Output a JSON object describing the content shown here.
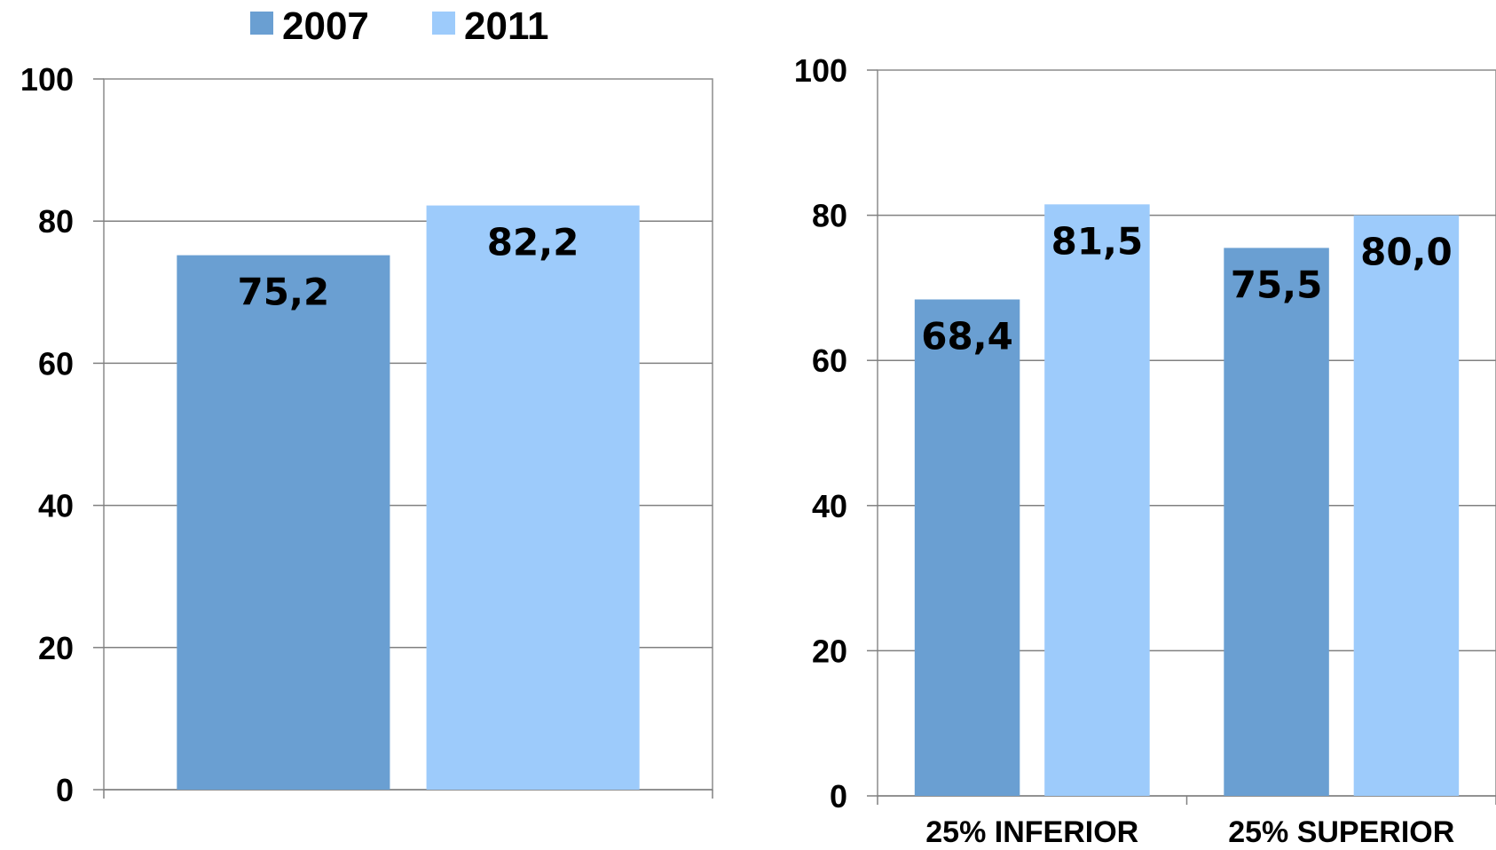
{
  "legend": {
    "items": [
      {
        "label": "2007",
        "color": "#6a9fd2"
      },
      {
        "label": "2011",
        "color": "#9dcbfb"
      }
    ]
  },
  "chart_data": [
    {
      "type": "bar",
      "title": "",
      "xlabel": "",
      "ylabel": "",
      "categories": [
        ""
      ],
      "series": [
        {
          "name": "2007",
          "values": [
            75.2
          ],
          "labels": [
            "75,2"
          ]
        },
        {
          "name": "2011",
          "values": [
            82.2
          ],
          "labels": [
            "82,2"
          ]
        }
      ],
      "ylim": [
        0,
        100
      ],
      "yticks": [
        0,
        20,
        40,
        60,
        80,
        100
      ],
      "grid": true
    },
    {
      "type": "bar",
      "title": "",
      "xlabel": "",
      "ylabel": "",
      "categories": [
        "25% INFERIOR",
        "25% SUPERIOR"
      ],
      "series": [
        {
          "name": "2007",
          "values": [
            68.4,
            75.5
          ],
          "labels": [
            "68,4",
            "75,5"
          ]
        },
        {
          "name": "2011",
          "values": [
            81.5,
            80.0
          ],
          "labels": [
            "81,5",
            "80,0"
          ]
        }
      ],
      "ylim": [
        0,
        100
      ],
      "yticks": [
        0,
        20,
        40,
        60,
        80,
        100
      ],
      "grid": true
    }
  ]
}
